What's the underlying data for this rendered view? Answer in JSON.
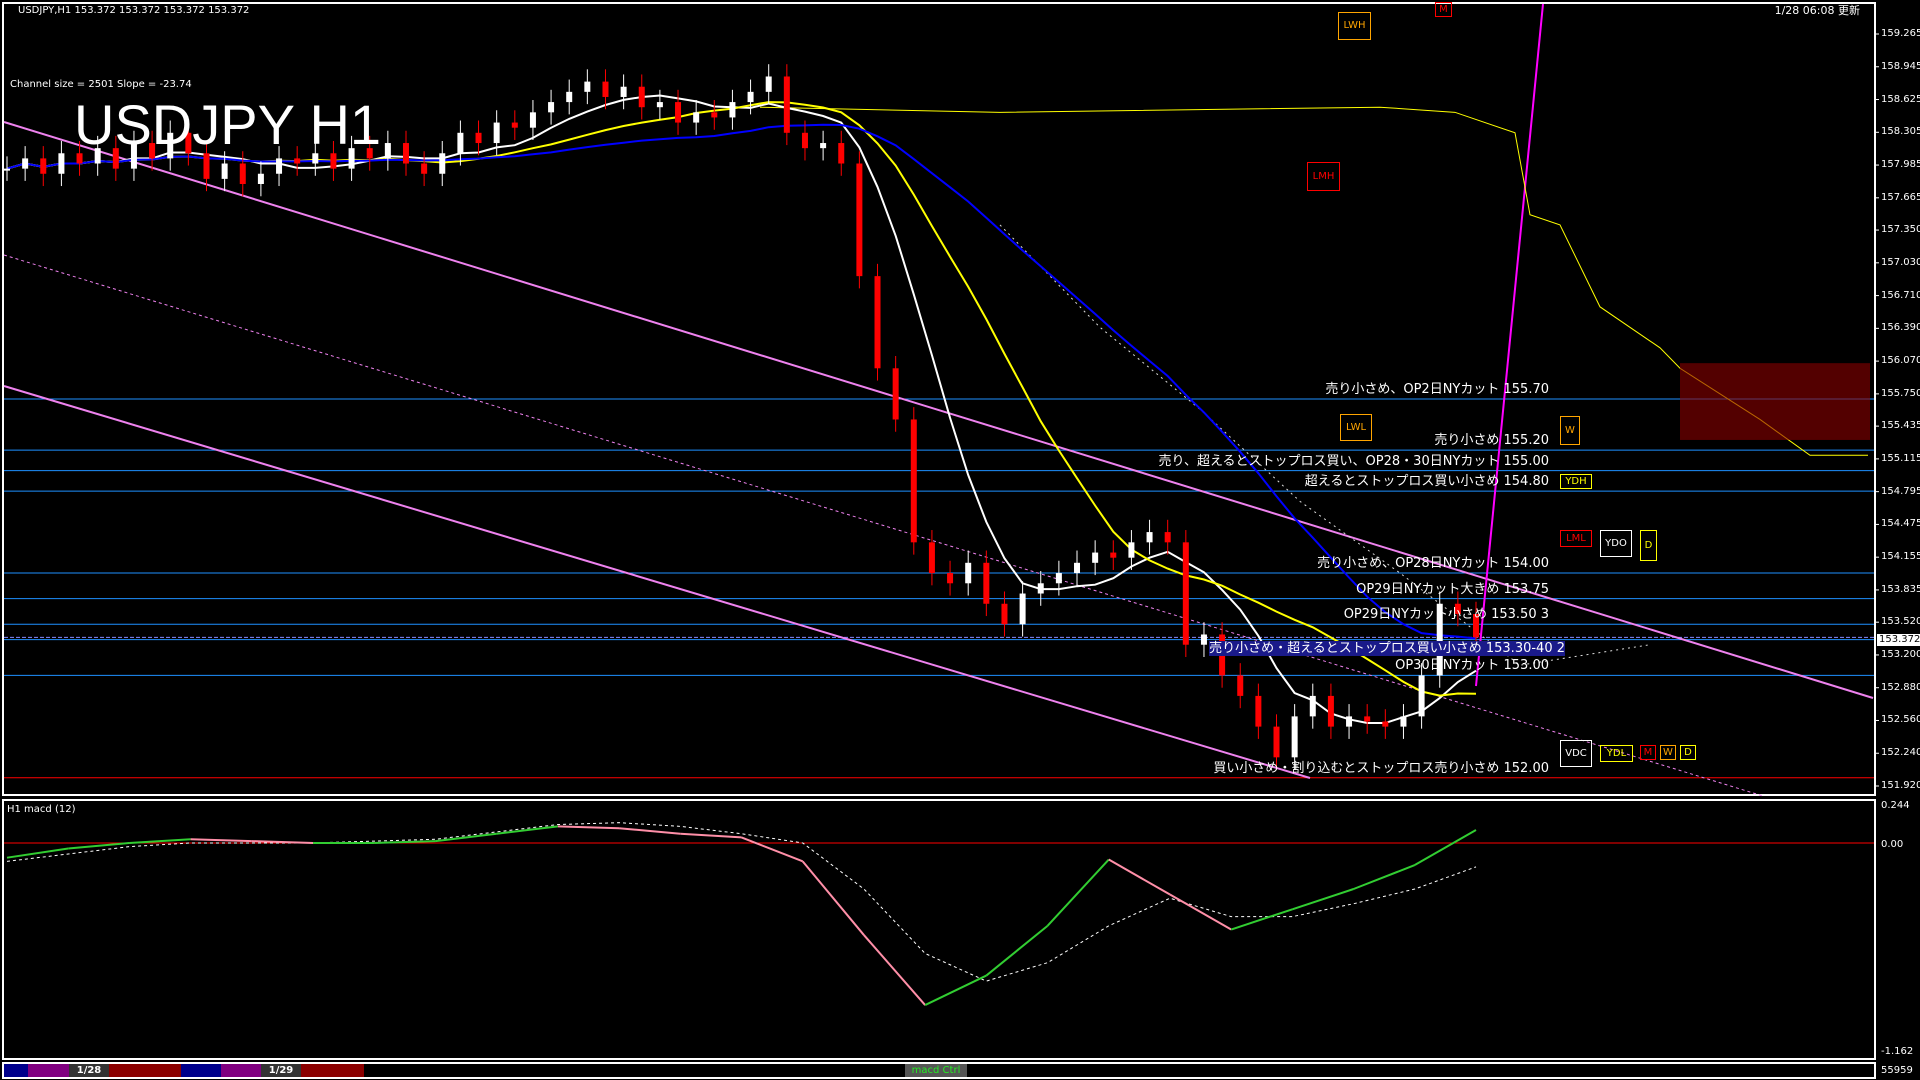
{
  "header": {
    "symbol_line": "USDJPY,H1  153.372 153.372 153.372 153.372",
    "channel_info": "Channel size = 2501 Slope = -23.74",
    "big_title": "USDJPY H1",
    "updated": "1/28 06:08 更新"
  },
  "price_axis": {
    "ticks": [
      "159.265",
      "158.945",
      "158.625",
      "158.305",
      "157.985",
      "157.665",
      "157.350",
      "157.030",
      "156.710",
      "156.390",
      "156.070",
      "155.750",
      "155.435",
      "155.115",
      "154.795",
      "154.475",
      "154.155",
      "153.835",
      "153.520",
      "153.200",
      "152.880",
      "152.560",
      "152.240",
      "151.920"
    ],
    "current_price": "153.372"
  },
  "annotations": [
    {
      "text": "売り小さめ、OP2日NYカット 155.70",
      "price": 155.7
    },
    {
      "text": "売り小さめ 155.20",
      "price": 155.2
    },
    {
      "text": "売り、超えるとストップロス買い、OP28・30日NYカット 155.00",
      "price": 155.0
    },
    {
      "text": "超えるとストップロス買い小さめ 154.80",
      "price": 154.8
    },
    {
      "text": "売り小さめ、OP28日NYカット 154.00",
      "price": 154.0
    },
    {
      "text": "OP29日NYカット大きめ 153.75",
      "price": 153.75
    },
    {
      "text": "OP29日NYカット小さめ 153.50  3",
      "price": 153.5
    },
    {
      "text": "売り小さめ・超えるとストップロス買い小さめ 153.30-40  2",
      "price": 153.35
    },
    {
      "text": "OP30日NYカット 153.00",
      "price": 153.0
    },
    {
      "text": "買い小さめ・割り込むとストップロス売り小さめ 152.00",
      "price": 152.0
    }
  ],
  "level_boxes": [
    "LWH",
    "M",
    "LMH",
    "LWL",
    "W",
    "YDH",
    "LML",
    "YDO",
    "D",
    "VDC",
    "YDL",
    "M",
    "W",
    "D"
  ],
  "macd": {
    "label": "H1  macd (12)",
    "ticks": [
      "0.244",
      "0.00",
      "-1.162"
    ],
    "volume": "55959"
  },
  "bottom_strip": {
    "date1": "1/28",
    "date2": "1/29",
    "button": "macd Ctrl"
  },
  "colors": {
    "bull": "#ffffff",
    "bear": "#ff0000",
    "level_line": "#1e90ff",
    "channel": "#ee82ee",
    "ma_white": "#ffffff",
    "ma_yellow": "#ffff00",
    "ma_blue": "#0000ff",
    "macd_main_up": "#32cd32",
    "macd_main_down": "#ff8fa8"
  },
  "chart_data": [
    {
      "type": "candlestick",
      "title": "USDJPY H1",
      "ylim": [
        151.92,
        159.265
      ],
      "close": [
        157.95,
        158.05,
        157.9,
        158.1,
        158.0,
        158.15,
        157.95,
        158.2,
        158.05,
        158.3,
        158.1,
        157.85,
        158.0,
        157.8,
        157.9,
        158.05,
        158.0,
        158.1,
        157.95,
        158.15,
        158.05,
        158.2,
        158.0,
        157.9,
        158.1,
        158.3,
        158.2,
        158.4,
        158.35,
        158.5,
        158.6,
        158.7,
        158.8,
        158.65,
        158.75,
        158.55,
        158.6,
        158.4,
        158.5,
        158.45,
        158.6,
        158.7,
        158.85,
        158.3,
        158.15,
        158.2,
        158.0,
        156.9,
        156.0,
        155.5,
        154.3,
        154.0,
        153.9,
        154.1,
        153.7,
        153.5,
        153.8,
        153.9,
        154.0,
        154.1,
        154.2,
        154.15,
        154.3,
        154.4,
        154.3,
        153.3,
        153.4,
        153.0,
        152.8,
        152.5,
        152.2,
        152.6,
        152.8,
        152.5,
        152.6,
        152.55,
        152.5,
        152.6,
        153.0,
        153.7,
        153.6,
        153.372
      ]
    },
    {
      "type": "line",
      "title": "macd (12)",
      "ylim": [
        -1.162,
        0.244
      ],
      "series": [
        {
          "values": [
            -0.08,
            -0.03,
            0.0,
            0.02,
            0.01,
            0.0,
            0.0,
            0.01,
            0.05,
            0.09,
            0.08,
            0.05,
            0.03,
            -0.1,
            -0.5,
            -0.88,
            -0.72,
            -0.45,
            -0.09,
            -0.28,
            -0.47,
            -0.36,
            -0.25,
            -0.12,
            0.07
          ]
        },
        {
          "values": [
            -0.1,
            -0.06,
            -0.02,
            0.0,
            0.0,
            0.0,
            0.01,
            0.02,
            0.06,
            0.1,
            0.11,
            0.09,
            0.05,
            0.0,
            -0.25,
            -0.6,
            -0.75,
            -0.65,
            -0.45,
            -0.3,
            -0.4,
            -0.4,
            -0.33,
            -0.25,
            -0.13
          ]
        }
      ]
    }
  ]
}
